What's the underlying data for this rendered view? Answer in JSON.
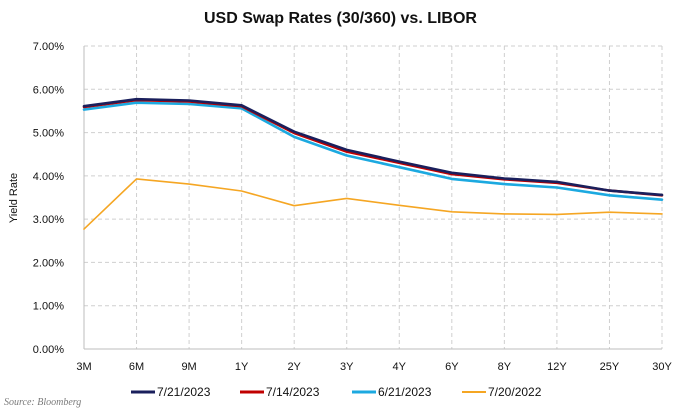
{
  "source": "Source: Bloomberg",
  "chart_data": {
    "type": "line",
    "title": "USD Swap Rates (30/360) vs. LIBOR",
    "xlabel": "",
    "ylabel": "Yield Rate",
    "categories": [
      "3M",
      "6M",
      "9M",
      "1Y",
      "2Y",
      "3Y",
      "4Y",
      "6Y",
      "8Y",
      "12Y",
      "25Y",
      "30Y"
    ],
    "ylim": [
      0,
      7
    ],
    "yticks": [
      0,
      1,
      2,
      3,
      4,
      5,
      6,
      7
    ],
    "ytick_labels": [
      "0.00%",
      "1.00%",
      "2.00%",
      "3.00%",
      "4.00%",
      "5.00%",
      "6.00%",
      "7.00%"
    ],
    "grid": true,
    "legend_position": "bottom",
    "series": [
      {
        "name": "7/21/2023",
        "color": "#1a1f5c",
        "values": [
          5.61,
          5.77,
          5.74,
          5.63,
          5.02,
          4.6,
          4.33,
          4.07,
          3.94,
          3.86,
          3.66,
          3.56
        ]
      },
      {
        "name": "7/14/2023",
        "color": "#c00000",
        "values": [
          5.59,
          5.75,
          5.72,
          5.61,
          4.99,
          4.56,
          4.3,
          4.04,
          3.92,
          3.84,
          3.66,
          3.55
        ]
      },
      {
        "name": "6/21/2023",
        "color": "#1ca9e0",
        "values": [
          5.53,
          5.69,
          5.66,
          5.56,
          4.9,
          4.47,
          4.2,
          3.93,
          3.81,
          3.73,
          3.55,
          3.45
        ]
      },
      {
        "name": "7/20/2022",
        "color": "#f5a623",
        "values": [
          2.77,
          3.93,
          3.81,
          3.65,
          3.31,
          3.48,
          3.32,
          3.17,
          3.12,
          3.11,
          3.16,
          3.12
        ]
      }
    ]
  }
}
